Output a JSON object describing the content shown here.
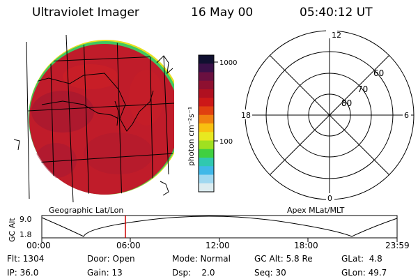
{
  "header": {
    "title": "Ultraviolet Imager",
    "date": "16 May 00",
    "time": "05:40:12 UT"
  },
  "colorbar": {
    "unit_label": "photon cm⁻²s⁻¹",
    "tick_labels": [
      "1000",
      "100"
    ],
    "colors_top_to_bottom": [
      "#101030",
      "#3a1048",
      "#6a1040",
      "#8e1030",
      "#b01020",
      "#cc1818",
      "#e04010",
      "#f08010",
      "#f8c010",
      "#e8e820",
      "#a0e020",
      "#40d040",
      "#30c8b0",
      "#40b8e8",
      "#a0d8f0",
      "#dcecf0"
    ]
  },
  "polar_plot": {
    "mlt_labels": [
      "12",
      "18",
      "6",
      "0"
    ],
    "mlat_labels": [
      "60",
      "70",
      "80"
    ]
  },
  "altitude_strip": {
    "axis_title": "GC Alt",
    "y_ticks": [
      "9.0",
      "1.8"
    ],
    "left_caption": "Geographic Lat/Lon",
    "right_caption": "Apex MLat/MLT",
    "time_ticks": [
      "00:00",
      "06:00",
      "12:00",
      "18:00",
      "23:59"
    ],
    "current_time_marker_color": "#cc0000"
  },
  "info": {
    "row1": {
      "flt": "Flt: 1304",
      "door": "Door: Open",
      "mode": "Mode: Normal",
      "gcalt": "GC Alt: 5.8 Re",
      "glat": "GLat:  4.8"
    },
    "row2": {
      "ip": "IP: 36.0",
      "gain": "Gain: 13",
      "dsp": "Dsp:    2.0",
      "seq": "Seq: 30",
      "glon": "GLon: 49.7"
    }
  },
  "colors": {
    "disk_base": "#c01c2a",
    "disk_dark": "#8a1636",
    "limb_yellow": "#e8e020",
    "limb_green": "#40c860"
  }
}
